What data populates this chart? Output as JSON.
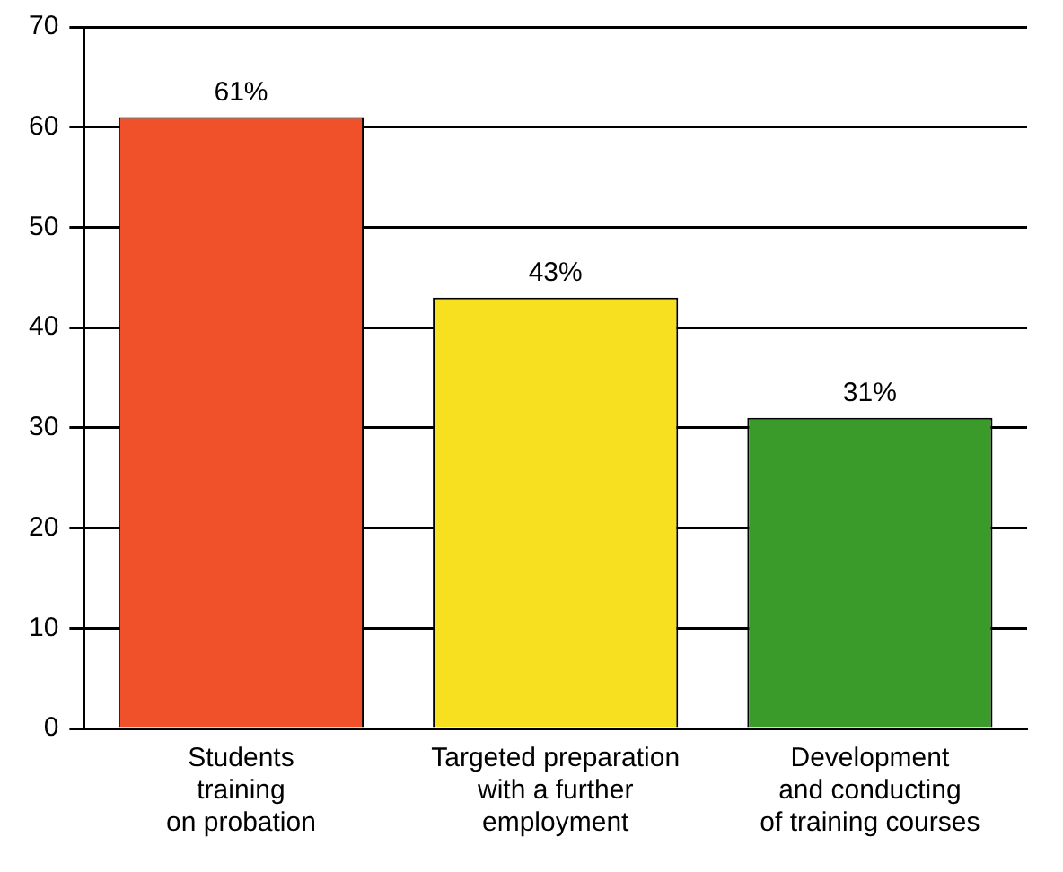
{
  "chart_data": {
    "type": "bar",
    "categories": [
      "Students\ntraining\non probation",
      "Targeted preparation\nwith a further\nemployment",
      "Development\nand conducting\nof training courses"
    ],
    "values": [
      61,
      43,
      31
    ],
    "colors": [
      "#f0502a",
      "#f7e020",
      "#3a9a2a"
    ],
    "value_labels": [
      "61%",
      "43%",
      "31%"
    ],
    "ylim": [
      0,
      70
    ],
    "yticks": [
      0,
      10,
      20,
      30,
      40,
      50,
      60,
      70
    ],
    "grid": "y",
    "legend": false
  }
}
